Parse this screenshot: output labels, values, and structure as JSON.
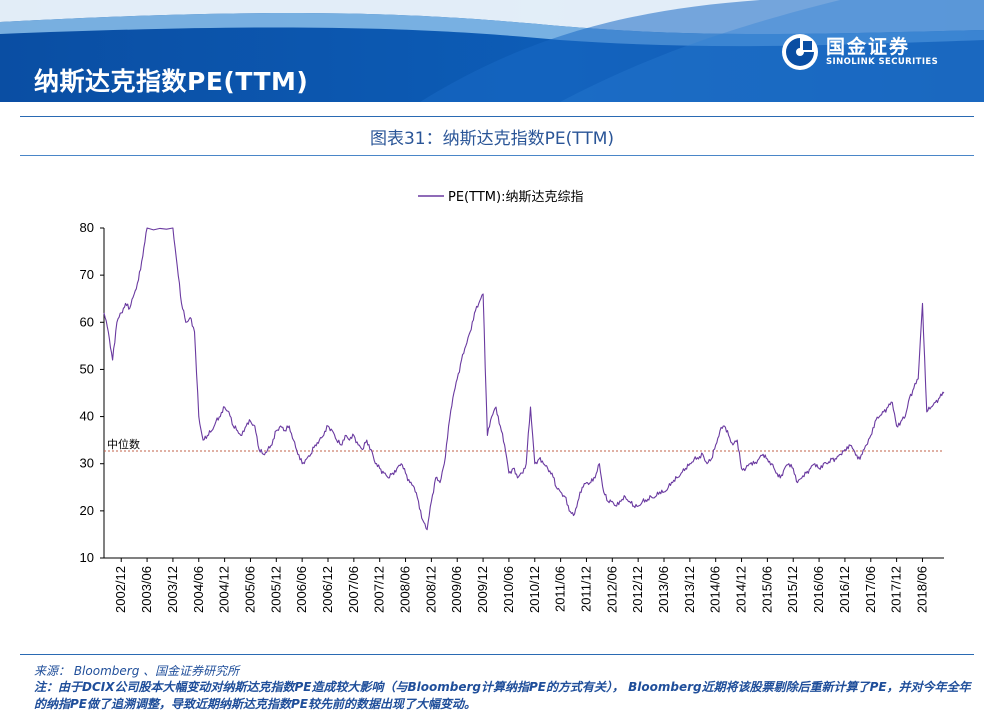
{
  "header": {
    "title": "纳斯达克指数PE(TTM)",
    "logo_cn": "国金证券",
    "logo_en": "SINOLINK SECURITIES",
    "colors": {
      "primary": "#0a4ea3",
      "light": "#6aa9e0"
    }
  },
  "figure_title": "图表31：纳斯达克指数PE(TTM)",
  "chart_data": {
    "type": "line",
    "legend": [
      "PE(TTM):纳斯达克综指"
    ],
    "legend_position": "top-center",
    "ylim": [
      10,
      80
    ],
    "yticks": [
      "10",
      "20",
      "30",
      "40",
      "50",
      "60",
      "70",
      "80"
    ],
    "xlim": [
      "2002-08",
      "2018-11"
    ],
    "xticks": [
      "2002/12",
      "2003/06",
      "2003/12",
      "2004/06",
      "2004/12",
      "2005/06",
      "2005/12",
      "2006/06",
      "2006/12",
      "2007/06",
      "2007/12",
      "2008/06",
      "2008/12",
      "2009/06",
      "2009/12",
      "2010/06",
      "2010/12",
      "2011/06",
      "2011/12",
      "2012/06",
      "2012/12",
      "2013/06",
      "2013/12",
      "2014/06",
      "2014/12",
      "2015/06",
      "2015/12",
      "2016/06",
      "2016/12",
      "2017/06",
      "2017/12",
      "2018/06"
    ],
    "median_label": "中位数",
    "median_value": 32.7,
    "line_color": "#6a3aa0",
    "median_color": "#c0604a",
    "series": [
      {
        "name": "PE(TTM):纳斯达克综指",
        "points": [
          [
            "2002-08",
            62
          ],
          [
            "2002-09",
            58
          ],
          [
            "2002-10",
            52
          ],
          [
            "2002-11",
            60
          ],
          [
            "2002-12",
            62
          ],
          [
            "2003-01",
            64
          ],
          [
            "2003-02",
            63
          ],
          [
            "2003-03",
            66
          ],
          [
            "2003-04",
            69
          ],
          [
            "2003-05",
            74
          ],
          [
            "2003-06",
            80
          ],
          [
            "2003-12",
            80
          ],
          [
            "2004-01",
            72
          ],
          [
            "2004-02",
            64
          ],
          [
            "2004-03",
            60
          ],
          [
            "2004-04",
            61
          ],
          [
            "2004-05",
            58
          ],
          [
            "2004-06",
            40
          ],
          [
            "2004-07",
            35
          ],
          [
            "2004-08",
            36
          ],
          [
            "2004-09",
            37
          ],
          [
            "2004-10",
            39
          ],
          [
            "2004-11",
            40
          ],
          [
            "2004-12",
            42
          ],
          [
            "2005-01",
            41
          ],
          [
            "2005-02",
            38
          ],
          [
            "2005-03",
            37
          ],
          [
            "2005-04",
            36
          ],
          [
            "2005-05",
            38
          ],
          [
            "2005-06",
            39
          ],
          [
            "2005-07",
            38
          ],
          [
            "2005-08",
            33
          ],
          [
            "2005-09",
            32
          ],
          [
            "2005-10",
            33
          ],
          [
            "2005-11",
            34
          ],
          [
            "2005-12",
            37
          ],
          [
            "2006-01",
            38
          ],
          [
            "2006-02",
            37
          ],
          [
            "2006-03",
            38
          ],
          [
            "2006-04",
            35
          ],
          [
            "2006-05",
            32
          ],
          [
            "2006-06",
            30
          ],
          [
            "2006-07",
            31
          ],
          [
            "2006-08",
            32
          ],
          [
            "2006-09",
            34
          ],
          [
            "2006-10",
            35
          ],
          [
            "2006-11",
            36
          ],
          [
            "2006-12",
            38
          ],
          [
            "2007-01",
            37
          ],
          [
            "2007-02",
            35
          ],
          [
            "2007-03",
            34
          ],
          [
            "2007-04",
            36
          ],
          [
            "2007-05",
            35
          ],
          [
            "2007-06",
            36
          ],
          [
            "2007-07",
            34
          ],
          [
            "2007-08",
            33
          ],
          [
            "2007-09",
            35
          ],
          [
            "2007-10",
            33
          ],
          [
            "2007-11",
            30
          ],
          [
            "2007-12",
            29
          ],
          [
            "2008-01",
            28
          ],
          [
            "2008-02",
            27
          ],
          [
            "2008-03",
            28
          ],
          [
            "2008-04",
            29
          ],
          [
            "2008-05",
            30
          ],
          [
            "2008-06",
            28
          ],
          [
            "2008-07",
            26
          ],
          [
            "2008-08",
            25
          ],
          [
            "2008-09",
            22
          ],
          [
            "2008-10",
            18
          ],
          [
            "2008-11",
            16
          ],
          [
            "2008-12",
            22
          ],
          [
            "2009-01",
            27
          ],
          [
            "2009-02",
            26
          ],
          [
            "2009-03",
            30
          ],
          [
            "2009-04",
            38
          ],
          [
            "2009-05",
            44
          ],
          [
            "2009-06",
            48
          ],
          [
            "2009-07",
            52
          ],
          [
            "2009-08",
            55
          ],
          [
            "2009-09",
            58
          ],
          [
            "2009-10",
            62
          ],
          [
            "2009-11",
            64
          ],
          [
            "2009-12",
            66
          ],
          [
            "2010-01",
            36
          ],
          [
            "2010-02",
            40
          ],
          [
            "2010-03",
            42
          ],
          [
            "2010-04",
            38
          ],
          [
            "2010-05",
            34
          ],
          [
            "2010-06",
            28
          ],
          [
            "2010-07",
            29
          ],
          [
            "2010-08",
            27
          ],
          [
            "2010-09",
            28
          ],
          [
            "2010-10",
            30
          ],
          [
            "2010-11",
            42
          ],
          [
            "2010-12",
            30
          ],
          [
            "2011-01",
            31
          ],
          [
            "2011-02",
            30
          ],
          [
            "2011-03",
            29
          ],
          [
            "2011-04",
            28
          ],
          [
            "2011-05",
            25
          ],
          [
            "2011-06",
            24
          ],
          [
            "2011-07",
            23
          ],
          [
            "2011-08",
            20
          ],
          [
            "2011-09",
            19
          ],
          [
            "2011-10",
            22
          ],
          [
            "2011-11",
            25
          ],
          [
            "2011-12",
            26
          ],
          [
            "2012-01",
            26
          ],
          [
            "2012-02",
            27
          ],
          [
            "2012-03",
            30
          ],
          [
            "2012-04",
            24
          ],
          [
            "2012-05",
            22
          ],
          [
            "2012-06",
            22
          ],
          [
            "2012-07",
            21
          ],
          [
            "2012-08",
            22
          ],
          [
            "2012-09",
            23
          ],
          [
            "2012-10",
            22
          ],
          [
            "2012-11",
            21
          ],
          [
            "2012-12",
            21
          ],
          [
            "2013-01",
            22
          ],
          [
            "2013-02",
            22
          ],
          [
            "2013-03",
            23
          ],
          [
            "2013-04",
            23
          ],
          [
            "2013-05",
            24
          ],
          [
            "2013-06",
            24
          ],
          [
            "2013-07",
            25
          ],
          [
            "2013-08",
            26
          ],
          [
            "2013-09",
            27
          ],
          [
            "2013-10",
            28
          ],
          [
            "2013-11",
            29
          ],
          [
            "2013-12",
            30
          ],
          [
            "2014-01",
            31
          ],
          [
            "2014-02",
            31
          ],
          [
            "2014-03",
            32
          ],
          [
            "2014-04",
            30
          ],
          [
            "2014-05",
            31
          ],
          [
            "2014-06",
            34
          ],
          [
            "2014-07",
            37
          ],
          [
            "2014-08",
            38
          ],
          [
            "2014-09",
            36
          ],
          [
            "2014-10",
            34
          ],
          [
            "2014-11",
            35
          ],
          [
            "2014-12",
            29
          ],
          [
            "2015-01",
            29
          ],
          [
            "2015-02",
            30
          ],
          [
            "2015-03",
            30
          ],
          [
            "2015-04",
            31
          ],
          [
            "2015-05",
            32
          ],
          [
            "2015-06",
            31
          ],
          [
            "2015-07",
            30
          ],
          [
            "2015-08",
            28
          ],
          [
            "2015-09",
            27
          ],
          [
            "2015-10",
            29
          ],
          [
            "2015-11",
            30
          ],
          [
            "2015-12",
            29
          ],
          [
            "2016-01",
            26
          ],
          [
            "2016-02",
            27
          ],
          [
            "2016-03",
            28
          ],
          [
            "2016-04",
            29
          ],
          [
            "2016-05",
            30
          ],
          [
            "2016-06",
            29
          ],
          [
            "2016-07",
            30
          ],
          [
            "2016-08",
            30
          ],
          [
            "2016-09",
            31
          ],
          [
            "2016-10",
            31
          ],
          [
            "2016-11",
            32
          ],
          [
            "2016-12",
            33
          ],
          [
            "2017-01",
            34
          ],
          [
            "2017-02",
            33
          ],
          [
            "2017-03",
            31
          ],
          [
            "2017-04",
            32
          ],
          [
            "2017-05",
            34
          ],
          [
            "2017-06",
            36
          ],
          [
            "2017-07",
            39
          ],
          [
            "2017-08",
            40
          ],
          [
            "2017-09",
            41
          ],
          [
            "2017-10",
            42
          ],
          [
            "2017-11",
            43
          ],
          [
            "2017-12",
            38
          ],
          [
            "2018-01",
            39
          ],
          [
            "2018-02",
            40
          ],
          [
            "2018-03",
            44
          ],
          [
            "2018-04",
            46
          ],
          [
            "2018-05",
            48
          ],
          [
            "2018-06",
            64
          ],
          [
            "2018-07",
            41
          ],
          [
            "2018-08",
            42
          ],
          [
            "2018-09",
            43
          ],
          [
            "2018-10",
            44
          ],
          [
            "2018-11",
            45
          ]
        ]
      }
    ]
  },
  "source": "来源： Bloomberg 、国金证券研究所",
  "note": "注：由于DCIX公司股本大幅变动对纳斯达克指数PE造成较大影响（与Bloomberg计算纳指PE的方式有关）， Bloomberg近期将该股票剔除后重新计算了PE，并对今年全年的纳指PE做了追溯调整，导致近期纳斯达克指数PE较先前的数据出现了大幅变动。"
}
